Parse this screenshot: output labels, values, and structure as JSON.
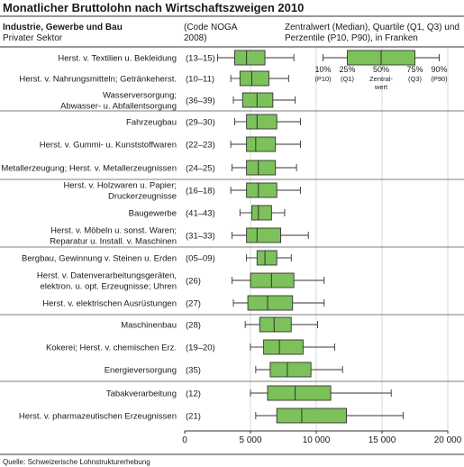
{
  "chart_data": {
    "type": "boxplot",
    "orientation": "horizontal",
    "title": "Monatlicher Bruttolohn nach Wirtschaftszweigen 2010",
    "subtitle_lines": [
      "Industrie, Gewerbe und Bau",
      "Privater Sektor"
    ],
    "code_header_lines": [
      "(Code NOGA",
      "2008)"
    ],
    "legend_header_lines": [
      "Zentralwert (Median), Quartile (Q1, Q3) und",
      "Perzentile (P10, P90), in Franken"
    ],
    "legend_items": [
      {
        "top": "10%",
        "bottom": "(P10)"
      },
      {
        "top": "25%",
        "bottom": "(Q1)"
      },
      {
        "top": "50%",
        "bottom": "Zentral-",
        "bottom2": "wert"
      },
      {
        "top": "75%",
        "bottom": "(Q3)"
      },
      {
        "top": "90%",
        "bottom": "(P90)"
      }
    ],
    "xlim": [
      0,
      20000
    ],
    "xticks": [
      0,
      5000,
      10000,
      15000,
      20000
    ],
    "xtick_labels": [
      "0",
      "5 000",
      "10 000",
      "15 000",
      "20 000"
    ],
    "grid": "vertical",
    "box_color": "#7cc15a",
    "groups": [
      [
        {
          "label": [
            "Herst. v. Textilien u. Bekleidung"
          ],
          "code": "(13–15)",
          "p10": 2500,
          "q1": 3800,
          "median": 4700,
          "q3": 6100,
          "p90": 8300
        },
        {
          "label": [
            "Herst. v. Nahrungsmitteln; Getränkeherst."
          ],
          "code": "(10–11)",
          "p10": 3500,
          "q1": 4200,
          "median": 5100,
          "q3": 6400,
          "p90": 7900
        },
        {
          "label": [
            "Wasserversorgung;",
            "Abwasser- u. Abfallentsorgung"
          ],
          "code": "(36–39)",
          "p10": 3700,
          "q1": 4400,
          "median": 5500,
          "q3": 6700,
          "p90": 8400
        }
      ],
      [
        {
          "label": [
            "Fahrzeugbau"
          ],
          "code": "(29–30)",
          "p10": 3800,
          "q1": 4700,
          "median": 5500,
          "q3": 7000,
          "p90": 8800
        },
        {
          "label": [
            "Herst. v. Gummi- u. Kunststoffwaren"
          ],
          "code": "(22–23)",
          "p10": 3500,
          "q1": 4700,
          "median": 5400,
          "q3": 6900,
          "p90": 8800
        },
        {
          "label": [
            "Metallerzeugung; Herst. v. Metallerzeugnissen"
          ],
          "code": "(24–25)",
          "p10": 3600,
          "q1": 4700,
          "median": 5600,
          "q3": 6900,
          "p90": 8500
        }
      ],
      [
        {
          "label": [
            "Herst. v. Holzwaren u. Papier;",
            "Druckerzeugnisse"
          ],
          "code": "(16–18)",
          "p10": 3500,
          "q1": 4700,
          "median": 5600,
          "q3": 7000,
          "p90": 8800
        },
        {
          "label": [
            "Baugewerbe"
          ],
          "code": "(41–43)",
          "p10": 4200,
          "q1": 5100,
          "median": 5600,
          "q3": 6600,
          "p90": 7600
        },
        {
          "label": [
            "Herst. v. Möbeln u. sonst. Waren;",
            "Reparatur u. Install. v. Maschinen"
          ],
          "code": "(31–33)",
          "p10": 3600,
          "q1": 4700,
          "median": 5500,
          "q3": 7300,
          "p90": 9400
        }
      ],
      [
        {
          "label": [
            "Bergbau, Gewinnung v. Steinen u. Erden"
          ],
          "code": "(05–09)",
          "p10": 4700,
          "q1": 5500,
          "median": 6100,
          "q3": 7000,
          "p90": 8100
        },
        {
          "label": [
            "Herst. v. Datenverarbeitungsgeräten,",
            "elektron. u. opt. Erzeugnisse; Uhren"
          ],
          "code": "(26)",
          "p10": 3600,
          "q1": 5000,
          "median": 6600,
          "q3": 8300,
          "p90": 10600
        },
        {
          "label": [
            "Herst. v. elektrischen Ausrüstungen"
          ],
          "code": "(27)",
          "p10": 3700,
          "q1": 4800,
          "median": 6300,
          "q3": 8200,
          "p90": 10600
        }
      ],
      [
        {
          "label": [
            "Maschinenbau"
          ],
          "code": "(28)",
          "p10": 4600,
          "q1": 5700,
          "median": 6800,
          "q3": 8100,
          "p90": 10100
        },
        {
          "label": [
            "Kokerei; Herst. v. chemischen Erz."
          ],
          "code": "(19–20)",
          "p10": 5000,
          "q1": 6000,
          "median": 7200,
          "q3": 9000,
          "p90": 11400
        },
        {
          "label": [
            "Energieversorgung"
          ],
          "code": "(35)",
          "p10": 5400,
          "q1": 6500,
          "median": 7800,
          "q3": 9600,
          "p90": 12000
        }
      ],
      [
        {
          "label": [
            "Tabakverarbeitung"
          ],
          "code": "(12)",
          "p10": 5000,
          "q1": 6300,
          "median": 8400,
          "q3": 11100,
          "p90": 15700
        },
        {
          "label": [
            "Herst. v. pharmazeutischen Erzeugnissen"
          ],
          "code": "(21)",
          "p10": 5400,
          "q1": 7000,
          "median": 8900,
          "q3": 12300,
          "p90": 16600
        }
      ]
    ],
    "source": "Quelle: Schweizerische Lohnstrukturerhebung"
  }
}
